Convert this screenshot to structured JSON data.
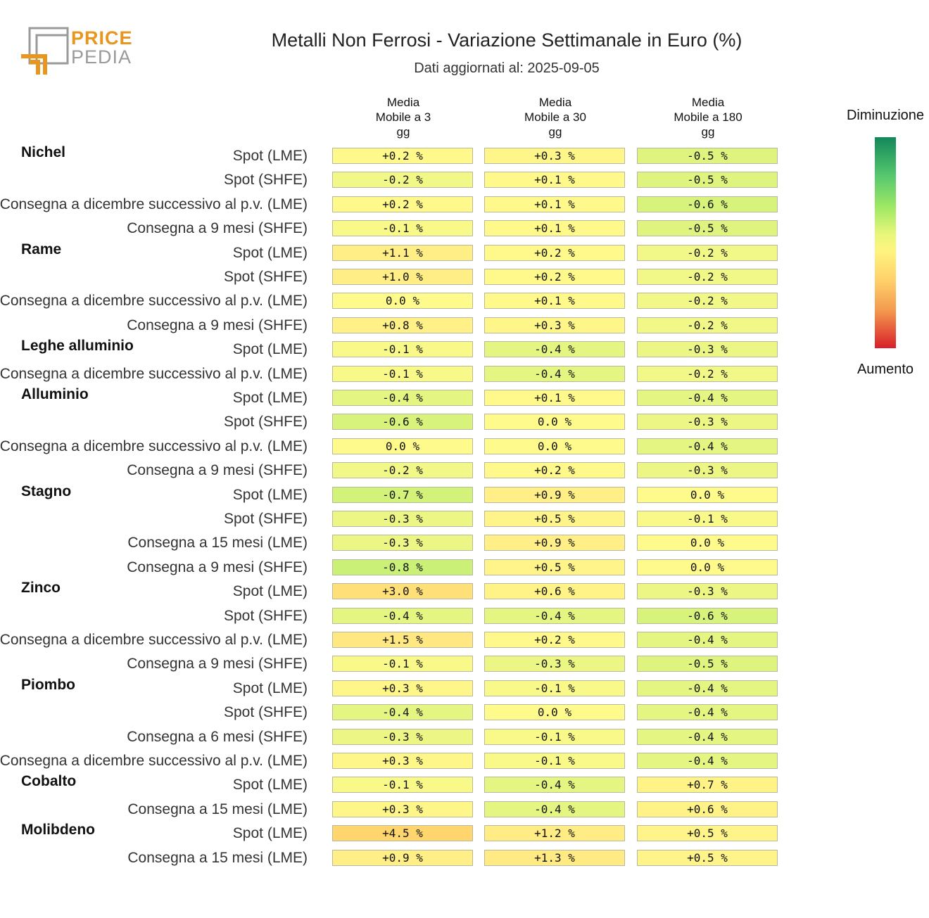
{
  "logo": {
    "word1": "PRICE",
    "word2": "PEDIA"
  },
  "header": {
    "title": "Metalli Non Ferrosi - Variazione Settimanale in Euro (%)",
    "subtitle": "Dati aggiornati al: 2025-09-05"
  },
  "legend": {
    "top_label": "Diminuzione",
    "bottom_label": "Aumento",
    "colors": [
      "#12875a",
      "#9ee865",
      "#fff47e",
      "#f39a4e",
      "#d81f2a"
    ]
  },
  "chart_data": {
    "type": "heatmap",
    "title": "Metalli Non Ferrosi - Variazione Settimanale in Euro (%)",
    "columns": [
      [
        "Media",
        "Mobile a 3",
        "gg"
      ],
      [
        "Media",
        "Mobile a 30",
        "gg"
      ],
      [
        "Media",
        "Mobile a 180",
        "gg"
      ]
    ],
    "groups": [
      {
        "name": "Nichel",
        "rows": [
          {
            "label": "Spot (LME)",
            "values": [
              "+0.2 %",
              "+0.3 %",
              "-0.5 %"
            ]
          },
          {
            "label": "Spot (SHFE)",
            "values": [
              "-0.2 %",
              "+0.1 %",
              "-0.5 %"
            ]
          },
          {
            "label": "Consegna a dicembre successivo al p.v. (LME)",
            "values": [
              "+0.2 %",
              "+0.1 %",
              "-0.6 %"
            ]
          },
          {
            "label": "Consegna a 9 mesi (SHFE)",
            "values": [
              "-0.1 %",
              "+0.1 %",
              "-0.5 %"
            ]
          }
        ]
      },
      {
        "name": "Rame",
        "rows": [
          {
            "label": "Spot (LME)",
            "values": [
              "+1.1 %",
              "+0.2 %",
              "-0.2 %"
            ]
          },
          {
            "label": "Spot (SHFE)",
            "values": [
              "+1.0 %",
              "+0.2 %",
              "-0.2 %"
            ]
          },
          {
            "label": "Consegna a dicembre successivo al p.v. (LME)",
            "values": [
              "0.0 %",
              "+0.1 %",
              "-0.2 %"
            ]
          },
          {
            "label": "Consegna a 9 mesi (SHFE)",
            "values": [
              "+0.8 %",
              "+0.3 %",
              "-0.2 %"
            ]
          }
        ]
      },
      {
        "name": "Leghe alluminio",
        "rows": [
          {
            "label": "Spot (LME)",
            "values": [
              "-0.1 %",
              "-0.4 %",
              "-0.3 %"
            ]
          },
          {
            "label": "Consegna a dicembre successivo al p.v. (LME)",
            "values": [
              "-0.1 %",
              "-0.4 %",
              "-0.2 %"
            ]
          }
        ]
      },
      {
        "name": "Alluminio",
        "rows": [
          {
            "label": "Spot (LME)",
            "values": [
              "-0.4 %",
              "+0.1 %",
              "-0.4 %"
            ]
          },
          {
            "label": "Spot (SHFE)",
            "values": [
              "-0.6 %",
              "0.0 %",
              "-0.3 %"
            ]
          },
          {
            "label": "Consegna a dicembre successivo al p.v. (LME)",
            "values": [
              "0.0 %",
              "0.0 %",
              "-0.4 %"
            ]
          },
          {
            "label": "Consegna a 9 mesi (SHFE)",
            "values": [
              "-0.2 %",
              "+0.2 %",
              "-0.3 %"
            ]
          }
        ]
      },
      {
        "name": "Stagno",
        "rows": [
          {
            "label": "Spot (LME)",
            "values": [
              "-0.7 %",
              "+0.9 %",
              "0.0 %"
            ]
          },
          {
            "label": "Spot (SHFE)",
            "values": [
              "-0.3 %",
              "+0.5 %",
              "-0.1 %"
            ]
          },
          {
            "label": "Consegna a 15 mesi (LME)",
            "values": [
              "-0.3 %",
              "+0.9 %",
              "0.0 %"
            ]
          },
          {
            "label": "Consegna a 9 mesi (SHFE)",
            "values": [
              "-0.8 %",
              "+0.5 %",
              "0.0 %"
            ]
          }
        ]
      },
      {
        "name": "Zinco",
        "rows": [
          {
            "label": "Spot (LME)",
            "values": [
              "+3.0 %",
              "+0.6 %",
              "-0.3 %"
            ]
          },
          {
            "label": "Spot (SHFE)",
            "values": [
              "-0.4 %",
              "-0.4 %",
              "-0.6 %"
            ]
          },
          {
            "label": "Consegna a dicembre successivo al p.v. (LME)",
            "values": [
              "+1.5 %",
              "+0.2 %",
              "-0.4 %"
            ]
          },
          {
            "label": "Consegna a 9 mesi (SHFE)",
            "values": [
              "-0.1 %",
              "-0.3 %",
              "-0.5 %"
            ]
          }
        ]
      },
      {
        "name": "Piombo",
        "rows": [
          {
            "label": "Spot (LME)",
            "values": [
              "+0.3 %",
              "-0.1 %",
              "-0.4 %"
            ]
          },
          {
            "label": "Spot (SHFE)",
            "values": [
              "-0.4 %",
              "0.0 %",
              "-0.4 %"
            ]
          },
          {
            "label": "Consegna a 6 mesi (SHFE)",
            "values": [
              "-0.3 %",
              "-0.1 %",
              "-0.4 %"
            ]
          },
          {
            "label": "Consegna a dicembre successivo al p.v. (LME)",
            "values": [
              "+0.3 %",
              "-0.1 %",
              "-0.4 %"
            ]
          }
        ]
      },
      {
        "name": "Cobalto",
        "rows": [
          {
            "label": "Spot (LME)",
            "values": [
              "-0.1 %",
              "-0.4 %",
              "+0.7 %"
            ]
          },
          {
            "label": "Consegna a 15 mesi (LME)",
            "values": [
              "+0.3 %",
              "-0.4 %",
              "+0.6 %"
            ]
          }
        ]
      },
      {
        "name": "Molibdeno",
        "rows": [
          {
            "label": "Spot (LME)",
            "values": [
              "+4.5 %",
              "+1.2 %",
              "+0.5 %"
            ]
          },
          {
            "label": "Consegna a 15 mesi (LME)",
            "values": [
              "+0.9 %",
              "+1.3 %",
              "+0.5 %"
            ]
          }
        ]
      }
    ]
  }
}
